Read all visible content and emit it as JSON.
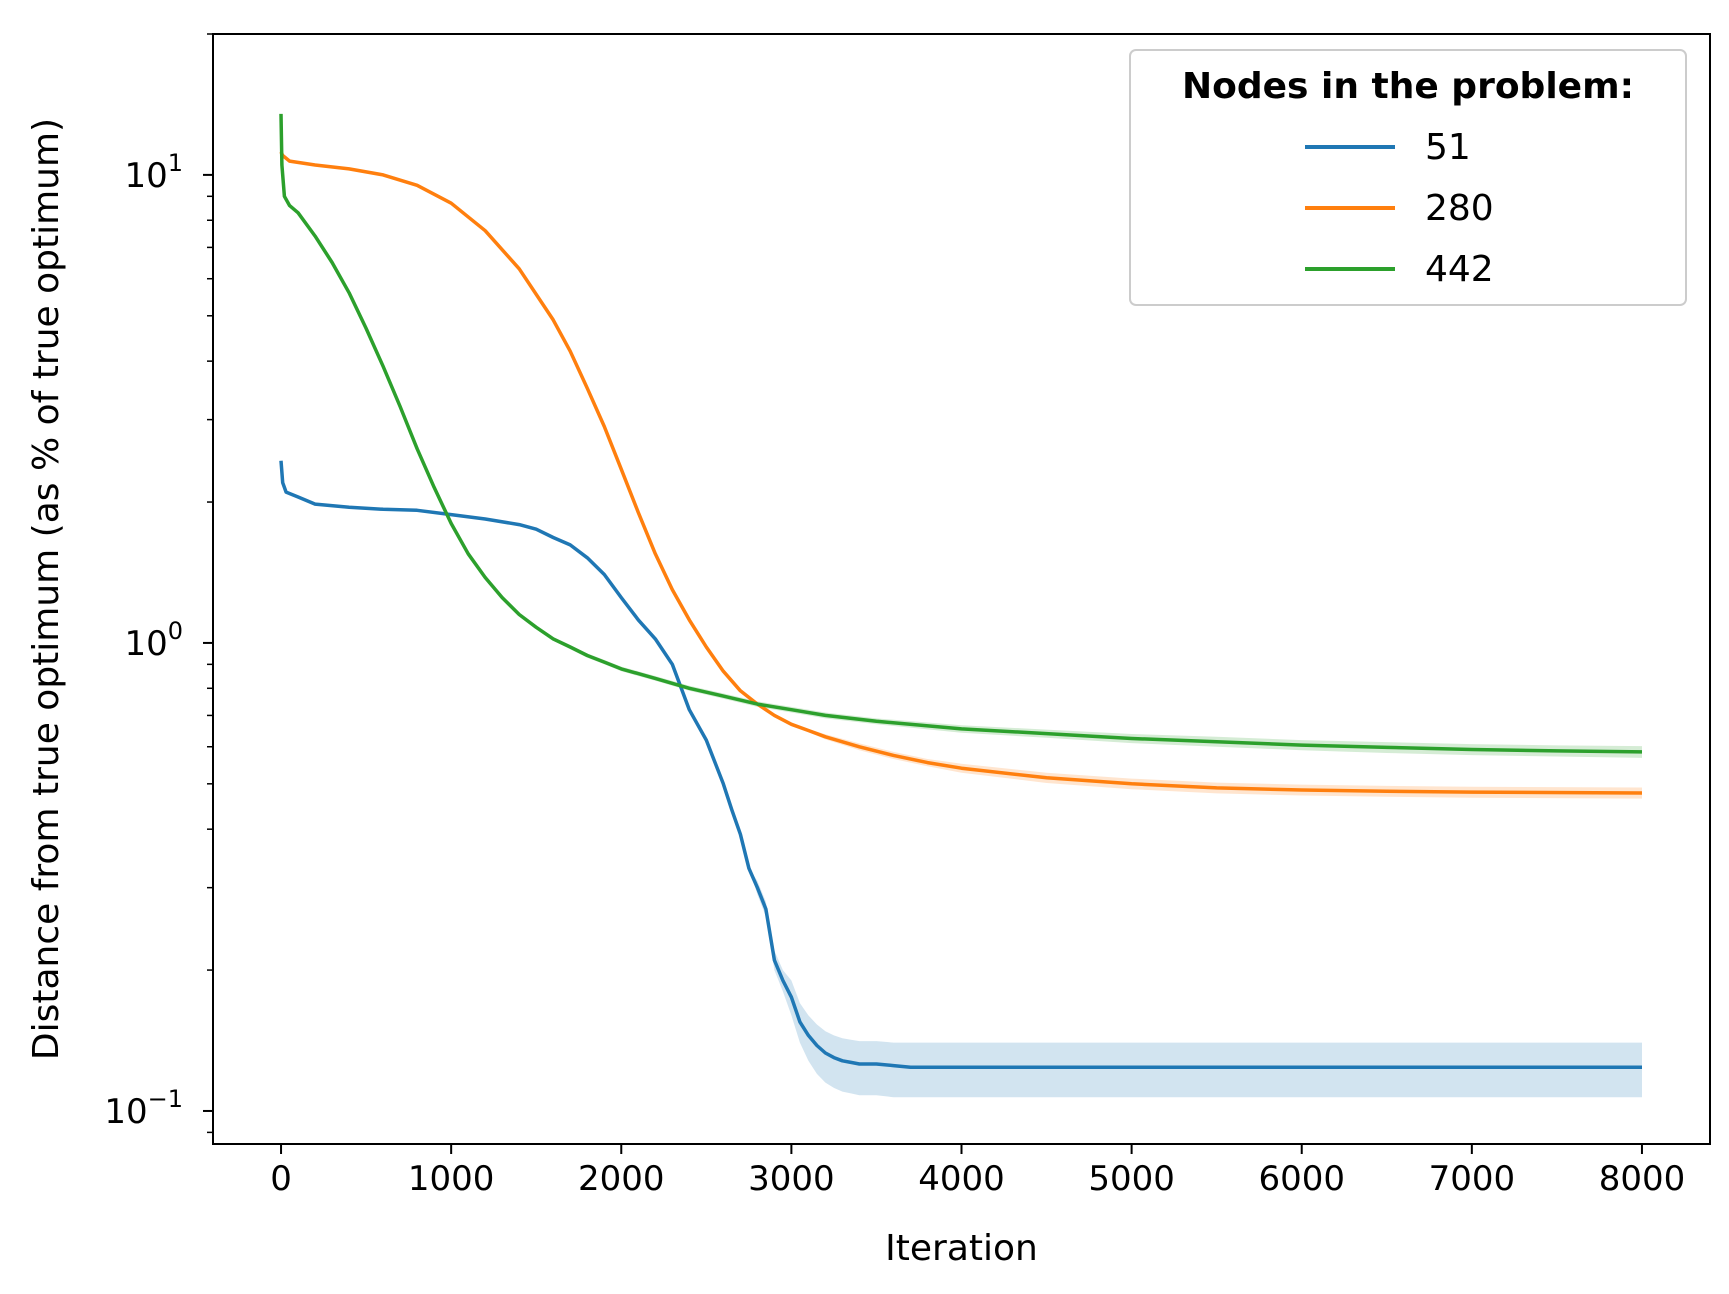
{
  "chart_data": {
    "type": "line",
    "title": "",
    "xlabel": "Iteration",
    "ylabel": "Distance from true optimum (as % of true optimum)",
    "yscale": "log",
    "xlim": [
      -400,
      8400
    ],
    "ylim": [
      0.085,
      20
    ],
    "xticks": [
      0,
      1000,
      2000,
      3000,
      4000,
      5000,
      6000,
      7000,
      8000
    ],
    "xtick_labels": [
      "0",
      "1000",
      "2000",
      "3000",
      "4000",
      "5000",
      "6000",
      "7000",
      "8000"
    ],
    "yticks": [
      {
        "value": 10,
        "base": "10",
        "exp": "1"
      },
      {
        "value": 1,
        "base": "10",
        "exp": "0"
      },
      {
        "value": 0.1,
        "base": "10",
        "exp": "−1"
      }
    ],
    "grid": false,
    "legend": {
      "title": "Nodes in the problem:",
      "placement": "top-right"
    },
    "series": [
      {
        "name": "51",
        "color": "#1f77b4",
        "x": [
          0,
          10,
          30,
          100,
          200,
          400,
          600,
          800,
          1000,
          1200,
          1400,
          1500,
          1600,
          1700,
          1800,
          1900,
          2000,
          2100,
          2200,
          2300,
          2400,
          2500,
          2600,
          2650,
          2700,
          2750,
          2800,
          2850,
          2900,
          2950,
          3000,
          3050,
          3100,
          3150,
          3200,
          3250,
          3300,
          3350,
          3400,
          3500,
          3600,
          3700,
          3800,
          4000,
          5000,
          6000,
          7000,
          8000
        ],
        "y": [
          2.45,
          2.2,
          2.1,
          2.05,
          1.98,
          1.95,
          1.93,
          1.92,
          1.88,
          1.84,
          1.79,
          1.75,
          1.68,
          1.62,
          1.52,
          1.4,
          1.25,
          1.12,
          1.02,
          0.9,
          0.72,
          0.62,
          0.5,
          0.44,
          0.39,
          0.33,
          0.3,
          0.27,
          0.21,
          0.19,
          0.175,
          0.155,
          0.145,
          0.138,
          0.133,
          0.13,
          0.128,
          0.127,
          0.126,
          0.126,
          0.125,
          0.124,
          0.124,
          0.124,
          0.124,
          0.124,
          0.124,
          0.124
        ],
        "band_low": [
          2.45,
          2.2,
          2.1,
          2.05,
          1.98,
          1.95,
          1.93,
          1.92,
          1.88,
          1.84,
          1.79,
          1.75,
          1.68,
          1.62,
          1.52,
          1.4,
          1.25,
          1.12,
          1.02,
          0.9,
          0.72,
          0.62,
          0.5,
          0.44,
          0.39,
          0.33,
          0.29,
          0.26,
          0.2,
          0.18,
          0.16,
          0.14,
          0.128,
          0.12,
          0.115,
          0.112,
          0.11,
          0.109,
          0.108,
          0.108,
          0.107,
          0.107,
          0.107,
          0.107,
          0.107,
          0.107,
          0.107,
          0.107
        ],
        "band_high": [
          2.45,
          2.2,
          2.1,
          2.05,
          1.98,
          1.95,
          1.93,
          1.92,
          1.88,
          1.84,
          1.79,
          1.75,
          1.68,
          1.62,
          1.52,
          1.4,
          1.25,
          1.12,
          1.02,
          0.9,
          0.72,
          0.62,
          0.5,
          0.44,
          0.39,
          0.33,
          0.31,
          0.28,
          0.22,
          0.2,
          0.19,
          0.17,
          0.16,
          0.153,
          0.148,
          0.145,
          0.143,
          0.142,
          0.141,
          0.141,
          0.14,
          0.14,
          0.14,
          0.14,
          0.14,
          0.14,
          0.14,
          0.14
        ]
      },
      {
        "name": "280",
        "color": "#ff7f0e",
        "x": [
          0,
          10,
          50,
          200,
          400,
          600,
          800,
          1000,
          1200,
          1400,
          1600,
          1700,
          1800,
          1900,
          2000,
          2100,
          2200,
          2300,
          2400,
          2500,
          2600,
          2700,
          2800,
          2900,
          3000,
          3100,
          3200,
          3400,
          3600,
          3800,
          4000,
          4500,
          5000,
          5500,
          6000,
          6500,
          7000,
          8000
        ],
        "y": [
          11.2,
          11.0,
          10.7,
          10.5,
          10.3,
          10.0,
          9.5,
          8.7,
          7.6,
          6.3,
          4.9,
          4.2,
          3.5,
          2.9,
          2.35,
          1.9,
          1.55,
          1.3,
          1.12,
          0.98,
          0.87,
          0.79,
          0.74,
          0.7,
          0.67,
          0.65,
          0.63,
          0.6,
          0.575,
          0.555,
          0.54,
          0.515,
          0.5,
          0.49,
          0.485,
          0.482,
          0.48,
          0.478
        ],
        "band_low": [
          11.2,
          11.0,
          10.7,
          10.5,
          10.3,
          10.0,
          9.5,
          8.7,
          7.6,
          6.3,
          4.9,
          4.2,
          3.5,
          2.9,
          2.35,
          1.9,
          1.55,
          1.3,
          1.12,
          0.98,
          0.87,
          0.79,
          0.74,
          0.7,
          0.67,
          0.645,
          0.622,
          0.59,
          0.565,
          0.545,
          0.528,
          0.502,
          0.487,
          0.477,
          0.472,
          0.469,
          0.467,
          0.465
        ],
        "band_high": [
          11.2,
          11.0,
          10.7,
          10.5,
          10.3,
          10.0,
          9.5,
          8.7,
          7.6,
          6.3,
          4.9,
          4.2,
          3.5,
          2.9,
          2.35,
          1.9,
          1.55,
          1.3,
          1.12,
          0.98,
          0.87,
          0.79,
          0.74,
          0.7,
          0.67,
          0.655,
          0.638,
          0.61,
          0.585,
          0.565,
          0.552,
          0.528,
          0.513,
          0.503,
          0.498,
          0.495,
          0.493,
          0.491
        ]
      },
      {
        "name": "442",
        "color": "#2ca02c",
        "x": [
          0,
          5,
          20,
          50,
          100,
          200,
          300,
          400,
          500,
          600,
          700,
          800,
          900,
          1000,
          1100,
          1200,
          1300,
          1400,
          1500,
          1600,
          1700,
          1800,
          1900,
          2000,
          2200,
          2400,
          2600,
          2800,
          3000,
          3200,
          3500,
          4000,
          4500,
          5000,
          5500,
          6000,
          6500,
          7000,
          7500,
          8000
        ],
        "y": [
          13.5,
          10.5,
          9.0,
          8.6,
          8.3,
          7.4,
          6.5,
          5.6,
          4.7,
          3.9,
          3.2,
          2.6,
          2.15,
          1.8,
          1.55,
          1.38,
          1.25,
          1.15,
          1.08,
          1.02,
          0.98,
          0.94,
          0.91,
          0.88,
          0.84,
          0.8,
          0.77,
          0.74,
          0.72,
          0.7,
          0.68,
          0.655,
          0.64,
          0.625,
          0.615,
          0.605,
          0.598,
          0.592,
          0.588,
          0.585
        ],
        "band_low": [
          13.5,
          10.5,
          9.0,
          8.6,
          8.3,
          7.4,
          6.5,
          5.6,
          4.7,
          3.9,
          3.2,
          2.6,
          2.15,
          1.8,
          1.55,
          1.38,
          1.25,
          1.15,
          1.08,
          1.01,
          0.97,
          0.93,
          0.9,
          0.87,
          0.83,
          0.79,
          0.76,
          0.73,
          0.71,
          0.69,
          0.67,
          0.643,
          0.627,
          0.611,
          0.6,
          0.59,
          0.582,
          0.576,
          0.572,
          0.568
        ],
        "band_high": [
          13.5,
          10.5,
          9.0,
          8.6,
          8.3,
          7.4,
          6.5,
          5.6,
          4.7,
          3.9,
          3.2,
          2.6,
          2.15,
          1.8,
          1.55,
          1.38,
          1.25,
          1.15,
          1.08,
          1.03,
          0.99,
          0.95,
          0.92,
          0.89,
          0.85,
          0.81,
          0.78,
          0.75,
          0.73,
          0.71,
          0.69,
          0.667,
          0.653,
          0.639,
          0.63,
          0.62,
          0.614,
          0.608,
          0.604,
          0.602
        ]
      }
    ]
  }
}
